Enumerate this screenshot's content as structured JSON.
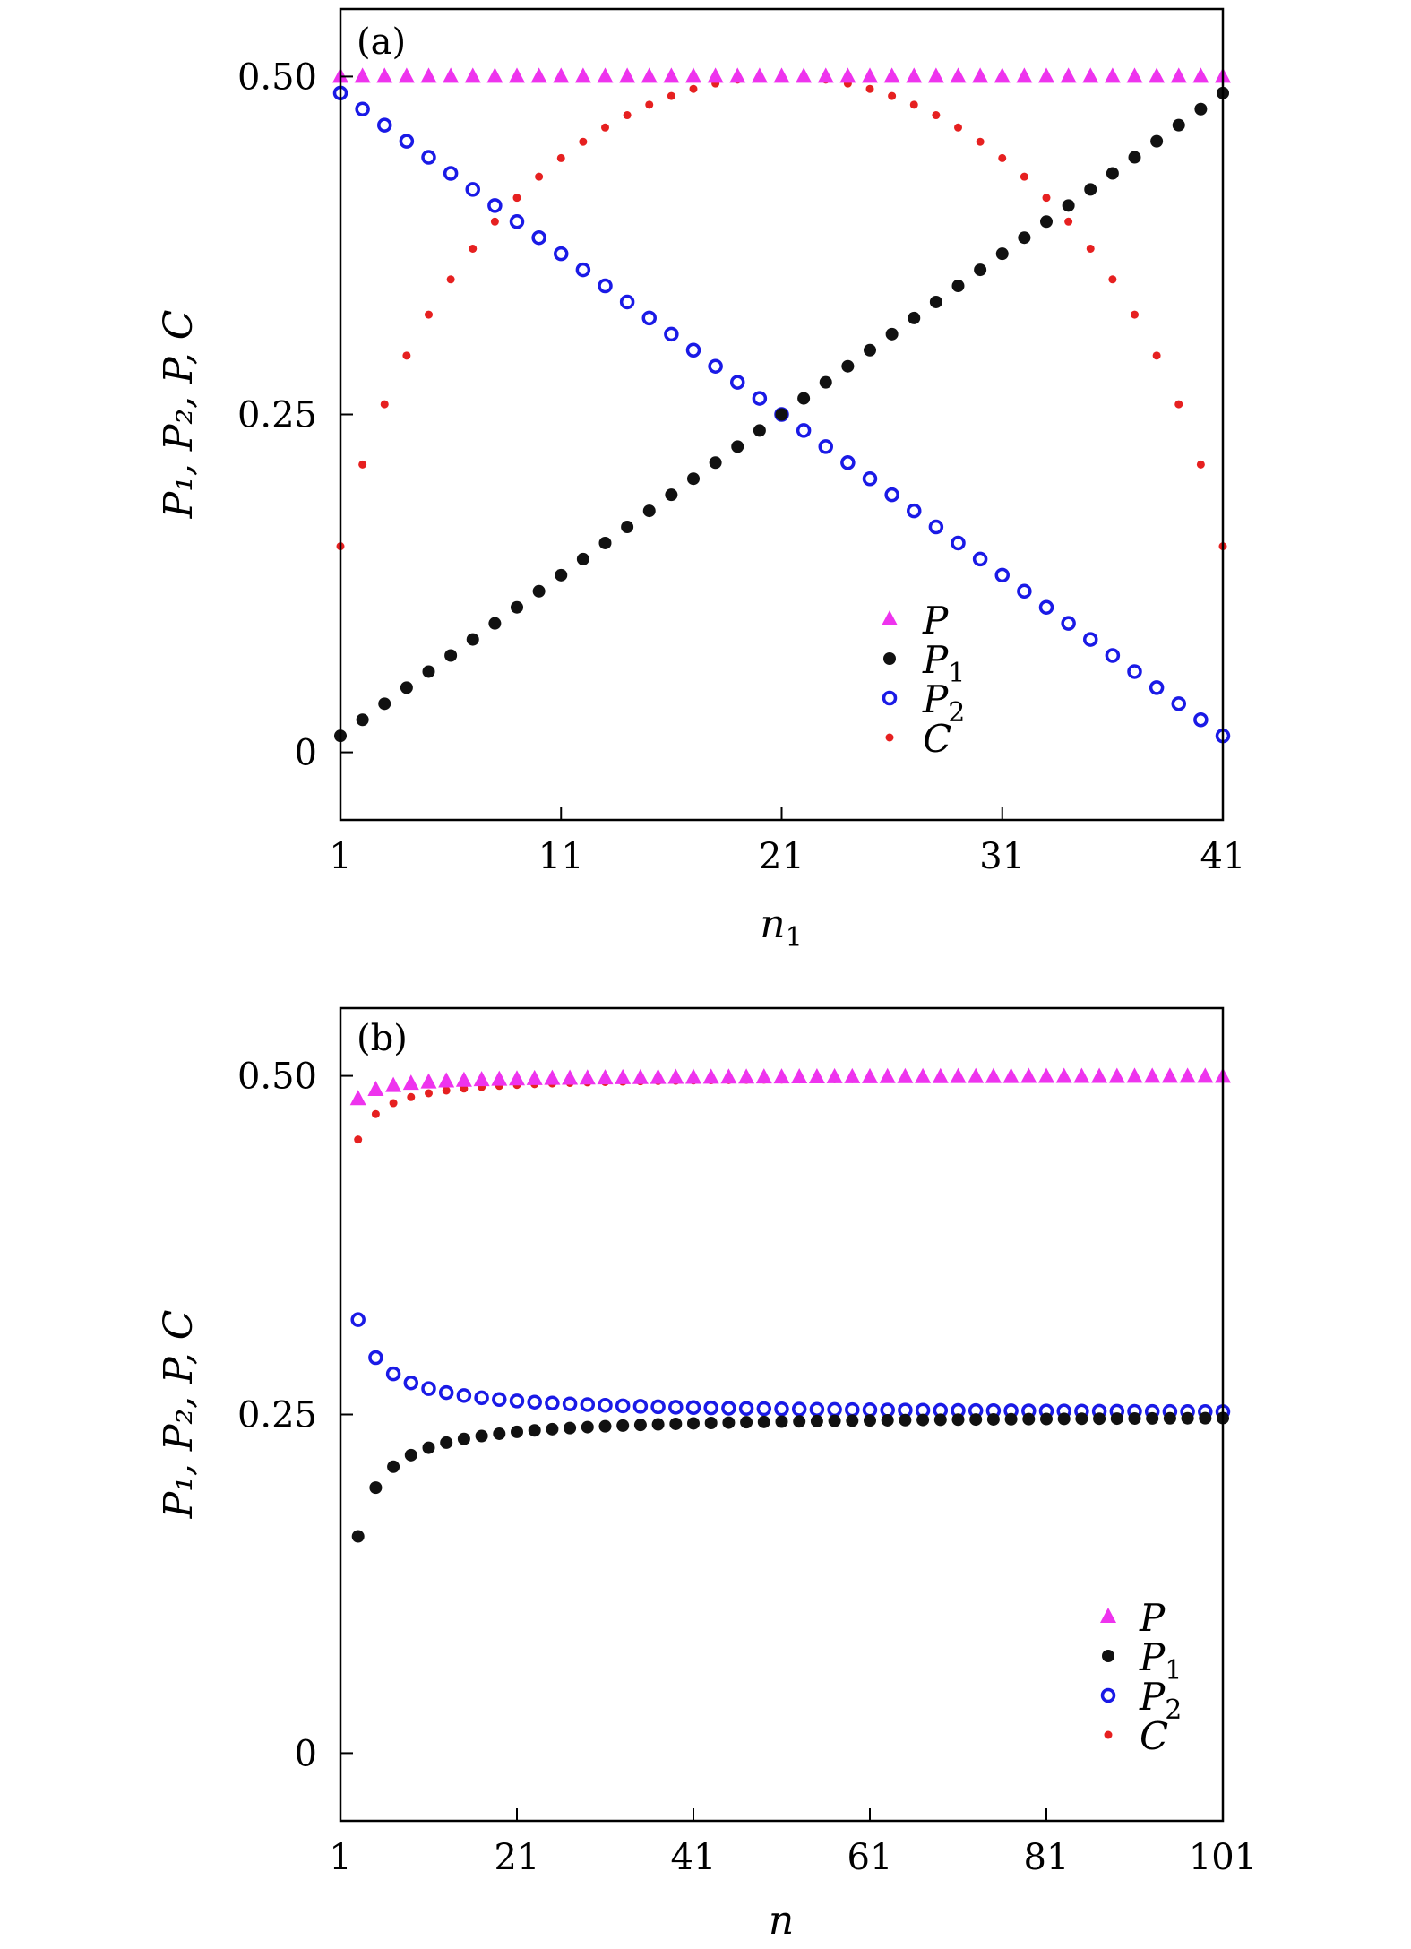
{
  "chart_data": [
    {
      "type": "scatter",
      "panel_label": "(a)",
      "xlabel": "n",
      "xlabel_sub": "1",
      "ylabel": "P₁, P₂, P, C",
      "xlim": [
        1,
        41
      ],
      "ylim": [
        -0.05,
        0.55
      ],
      "x_ticks": [
        1,
        11,
        21,
        31,
        41
      ],
      "y_ticks": [
        0,
        0.25,
        0.5
      ],
      "y_tick_labels": [
        "0",
        "0.25",
        "0.50"
      ],
      "legend_position": "bottom-right",
      "legend": [
        {
          "key": "P",
          "label": "P",
          "sub": ""
        },
        {
          "key": "P1",
          "label": "P",
          "sub": "1"
        },
        {
          "key": "P2",
          "label": "P",
          "sub": "2"
        },
        {
          "key": "C",
          "label": "C",
          "sub": ""
        }
      ],
      "series": [
        {
          "key": "P",
          "name": "P",
          "marker": "triangle",
          "color": "#ee33ee",
          "form": "constant",
          "value": 0.5,
          "x_start": 1,
          "x_end": 41
        },
        {
          "key": "P1",
          "name": "P1",
          "marker": "filled-circle",
          "color": "#111111",
          "form": "linear",
          "from": [
            1,
            0.0122
          ],
          "to": [
            41,
            0.4878
          ]
        },
        {
          "key": "P2",
          "name": "P2",
          "marker": "open-circle",
          "color": "#1a1ae6",
          "form": "linear",
          "from": [
            1,
            0.4878
          ],
          "to": [
            41,
            0.0122
          ]
        },
        {
          "key": "C",
          "name": "C",
          "marker": "small-dot",
          "color": "#e62020",
          "form": "concurrence",
          "x_start": 1,
          "x_end": 41
        }
      ]
    },
    {
      "type": "scatter",
      "panel_label": "(b)",
      "xlabel": "n",
      "xlabel_sub": "",
      "ylabel": "P₁, P₂, P, C",
      "xlim": [
        1,
        101
      ],
      "ylim": [
        -0.05,
        0.55
      ],
      "x_ticks": [
        1,
        21,
        41,
        61,
        81,
        101
      ],
      "y_ticks": [
        0,
        0.25,
        0.5
      ],
      "y_tick_labels": [
        "0",
        "0.25",
        "0.50"
      ],
      "legend_position": "bottom-right",
      "legend": [
        {
          "key": "P",
          "label": "P",
          "sub": ""
        },
        {
          "key": "P1",
          "label": "P",
          "sub": "1"
        },
        {
          "key": "P2",
          "label": "P",
          "sub": "2"
        },
        {
          "key": "C",
          "label": "C",
          "sub": ""
        }
      ],
      "series": [
        {
          "key": "P",
          "name": "P",
          "marker": "triangle",
          "color": "#ee33ee",
          "form": "saturating",
          "limit": 0.5,
          "first": 0.483,
          "x_start": 3,
          "x_end": 101,
          "step": 2
        },
        {
          "key": "P1",
          "name": "P1",
          "marker": "filled-circle",
          "color": "#111111",
          "form": "saturating",
          "limit": 0.25,
          "first": 0.16,
          "x_start": 3,
          "x_end": 101,
          "step": 2
        },
        {
          "key": "P2",
          "name": "P2",
          "marker": "open-circle",
          "color": "#1a1ae6",
          "form": "saturating",
          "limit": 0.25,
          "first": 0.32,
          "x_start": 3,
          "x_end": 101,
          "step": 2
        },
        {
          "key": "C",
          "name": "C",
          "marker": "small-dot",
          "color": "#e62020",
          "form": "saturating",
          "limit": 0.5,
          "first": 0.453,
          "x_start": 3,
          "x_end": 101,
          "step": 2
        }
      ]
    }
  ]
}
